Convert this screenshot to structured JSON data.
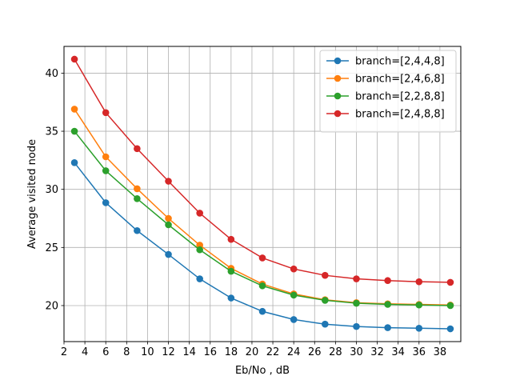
{
  "chart_data": {
    "type": "line",
    "title": "",
    "xlabel": "Eb/No , dB",
    "ylabel": "Average visited node",
    "xlim": [
      2,
      40
    ],
    "ylim": [
      16.9,
      42.3
    ],
    "xticks": [
      2,
      4,
      6,
      8,
      10,
      12,
      14,
      16,
      18,
      20,
      22,
      24,
      26,
      28,
      30,
      32,
      34,
      36,
      38
    ],
    "yticks": [
      20,
      25,
      30,
      35,
      40
    ],
    "grid": true,
    "legend_position": "top-right",
    "x": [
      3,
      6,
      9,
      12,
      15,
      18,
      21,
      24,
      27,
      30,
      33,
      36,
      39
    ],
    "series": [
      {
        "name": "branch=[2,4,4,8]",
        "color": "#1f77b4",
        "values": [
          32.3,
          28.85,
          26.45,
          24.4,
          22.3,
          20.65,
          19.5,
          18.8,
          18.4,
          18.2,
          18.1,
          18.05,
          18.0
        ]
      },
      {
        "name": "branch=[2,4,6,8]",
        "color": "#ff7f0e",
        "values": [
          36.9,
          32.8,
          30.05,
          27.5,
          25.2,
          23.2,
          21.85,
          21.0,
          20.5,
          20.25,
          20.15,
          20.1,
          20.05
        ]
      },
      {
        "name": "branch=[2,2,8,8]",
        "color": "#2ca02c",
        "values": [
          35.0,
          31.6,
          29.2,
          26.95,
          24.8,
          22.95,
          21.7,
          20.9,
          20.45,
          20.2,
          20.1,
          20.05,
          20.0
        ]
      },
      {
        "name": "branch=[2,4,8,8]",
        "color": "#d62728",
        "values": [
          41.2,
          36.6,
          33.5,
          30.7,
          27.95,
          25.7,
          24.1,
          23.15,
          22.6,
          22.3,
          22.15,
          22.05,
          22.0
        ]
      }
    ]
  }
}
